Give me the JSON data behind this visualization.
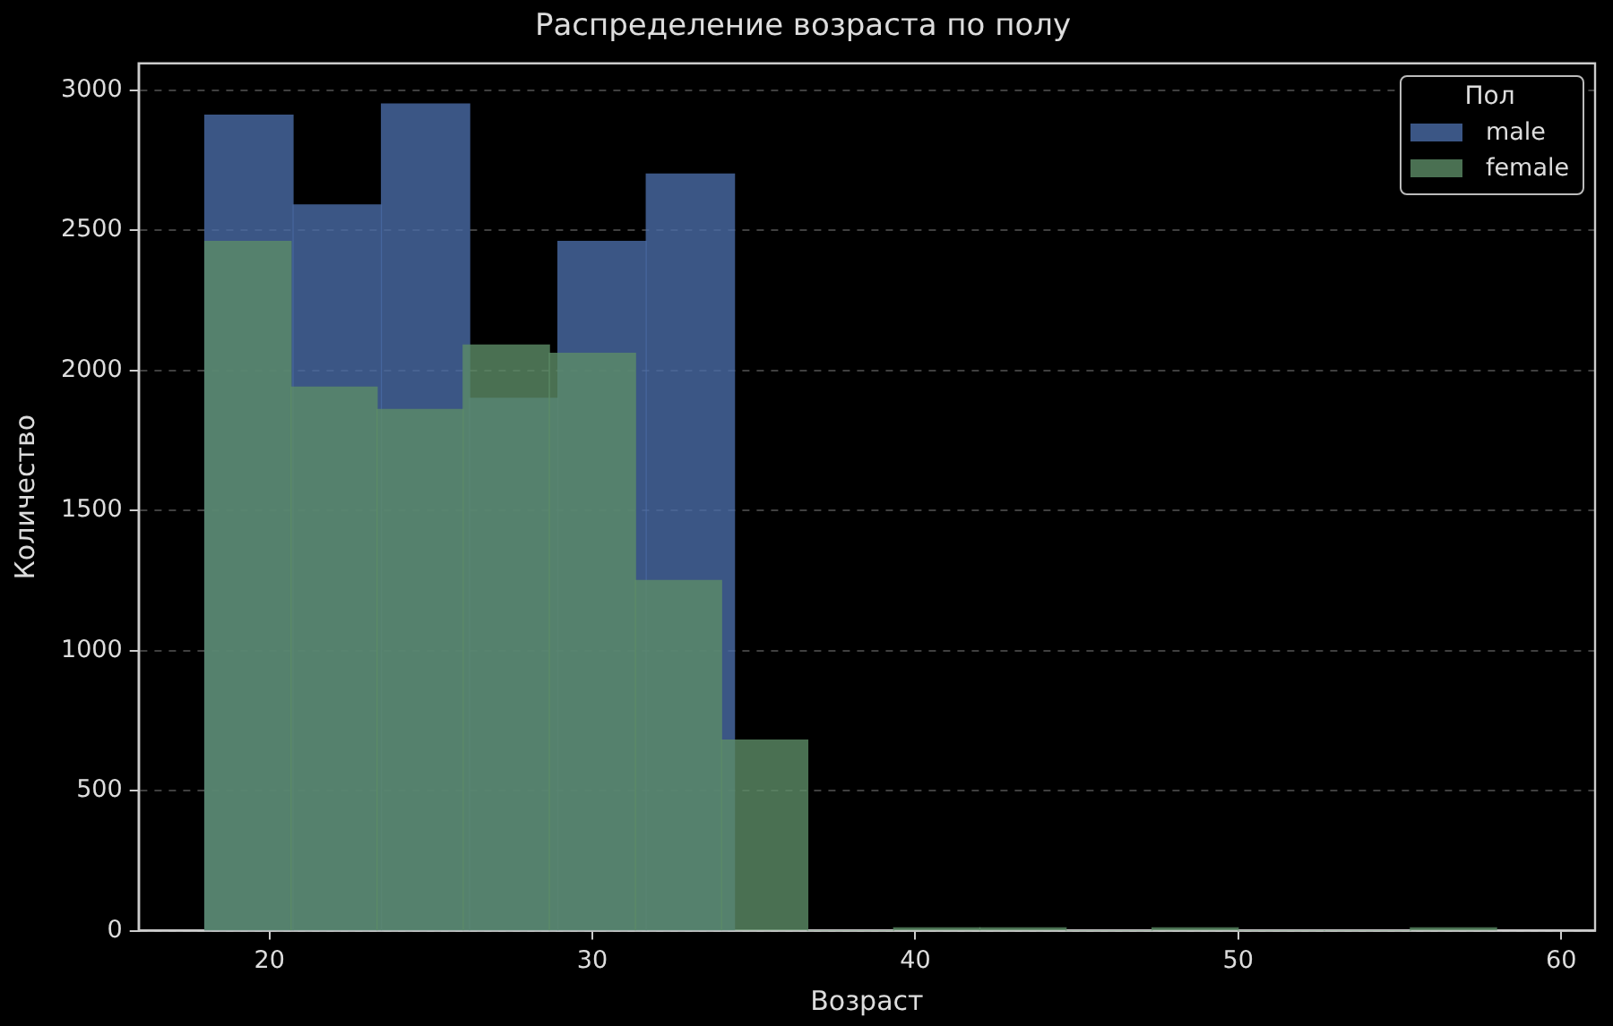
{
  "chart_data": {
    "type": "histogram",
    "title": "Распределение возраста по полу",
    "xlabel": "Возраст",
    "ylabel": "Количество",
    "legend_title": "Пол",
    "bins": [
      18,
      20.67,
      23.33,
      26,
      28.67,
      31.33,
      34,
      36.67,
      39.33,
      42,
      44.67,
      47.33,
      50,
      52.67,
      55.33,
      58
    ],
    "series": [
      {
        "name": "male",
        "color": "#4a6ca6",
        "bins": [
          18,
          20.73,
          23.47,
          26.2,
          28.93,
          31.67,
          34.4
        ],
        "values": [
          2910,
          2590,
          2950,
          1900,
          2460,
          2700
        ]
      },
      {
        "name": "female",
        "color": "#5c8c66",
        "values": [
          2460,
          1940,
          1860,
          2090,
          2060,
          1250,
          680,
          0,
          10,
          10,
          0,
          10,
          0,
          0,
          10
        ]
      }
    ],
    "xlim": [
      15.95,
      61.05
    ],
    "xticks": [
      20,
      30,
      40,
      50,
      60
    ],
    "ylim": [
      0,
      3095
    ],
    "yticks": [
      0,
      500,
      1000,
      1500,
      2000,
      2500,
      3000
    ],
    "grid": "y",
    "legend": "top right"
  }
}
